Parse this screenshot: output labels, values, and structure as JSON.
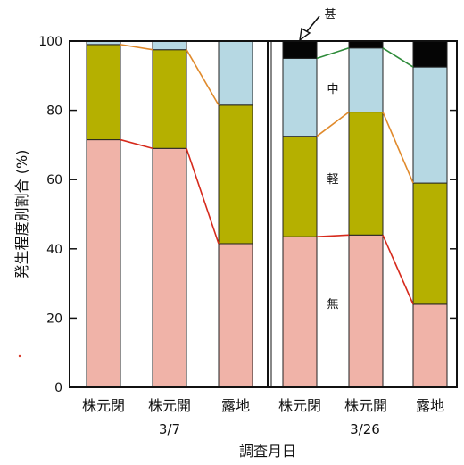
{
  "chart_data": {
    "type": "bar",
    "stacked": true,
    "xlabel": "調査月日",
    "ylabel": "発生程度別割合 (%)",
    "ylim": [
      0,
      100
    ],
    "yticks": [
      0,
      20,
      40,
      60,
      80,
      100
    ],
    "groups": [
      {
        "label": "3/7",
        "categories": [
          "株元閉",
          "株元開",
          "露地"
        ]
      },
      {
        "label": "3/26",
        "categories": [
          "株元閉",
          "株元開",
          "露地"
        ]
      }
    ],
    "categories": [
      "株元閉",
      "株元開",
      "露地",
      "株元閉",
      "株元開",
      "露地"
    ],
    "series": [
      {
        "name": "無",
        "color": "#f0b3a8",
        "line_color": "#d62a1c",
        "values": [
          71.5,
          69,
          41.5,
          43.5,
          44,
          24
        ]
      },
      {
        "name": "軽",
        "color": "#b5b000",
        "line_color": "#e08a2c",
        "values": [
          27.5,
          28.5,
          40,
          29,
          35.5,
          35
        ]
      },
      {
        "name": "中",
        "color": "#b6d8e3",
        "line_color": "#2e8b3a",
        "values": [
          1,
          2.5,
          18.5,
          22.5,
          18.5,
          33.5
        ]
      },
      {
        "name": "甚",
        "color": "#050505",
        "line_color": "#050505",
        "values": [
          0,
          0,
          0,
          5,
          2,
          7.5
        ]
      }
    ],
    "legend_placement": "inline labels in right panel"
  }
}
